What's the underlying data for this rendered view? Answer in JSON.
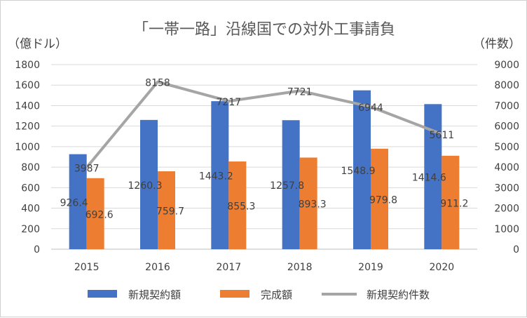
{
  "chart_data": {
    "type": "bar",
    "title": "「一帯一路」沿線国での対外工事請負",
    "y_left_unit": "（億ドル）",
    "y_right_unit": "（件数）",
    "categories": [
      "2015",
      "2016",
      "2017",
      "2018",
      "2019",
      "2020"
    ],
    "ylim_left": [
      0,
      1800
    ],
    "ylim_right": [
      0,
      9000
    ],
    "yticks_left": [
      "0",
      "200",
      "400",
      "600",
      "800",
      "1000",
      "1200",
      "1400",
      "1600",
      "1800"
    ],
    "yticks_right": [
      "0",
      "1000",
      "2000",
      "3000",
      "4000",
      "5000",
      "6000",
      "7000",
      "8000",
      "9000"
    ],
    "grid": true,
    "legend_position": "bottom",
    "series": [
      {
        "name": "新規契約額",
        "type": "bar",
        "axis": "left",
        "color": "#4472C4",
        "values": [
          926.4,
          1260.3,
          1443.2,
          1257.8,
          1548.9,
          1414.6
        ],
        "labels": [
          "926.4",
          "1260.3",
          "1443.2",
          "1257.8",
          "1548.9",
          "1414.6"
        ]
      },
      {
        "name": "完成額",
        "type": "bar",
        "axis": "left",
        "color": "#ED7D31",
        "values": [
          692.6,
          759.7,
          855.3,
          893.3,
          979.8,
          911.2
        ],
        "labels": [
          "692.6",
          "759.7",
          "855.3",
          "893.3",
          "979.8",
          "911.2"
        ]
      },
      {
        "name": "新規契約件数",
        "type": "line",
        "axis": "right",
        "color": "#A5A5A5",
        "values": [
          3987,
          8158,
          7217,
          7721,
          6944,
          5611
        ],
        "labels": [
          "3987",
          "8158",
          "7217",
          "7721",
          "6944",
          "5611"
        ]
      }
    ]
  }
}
